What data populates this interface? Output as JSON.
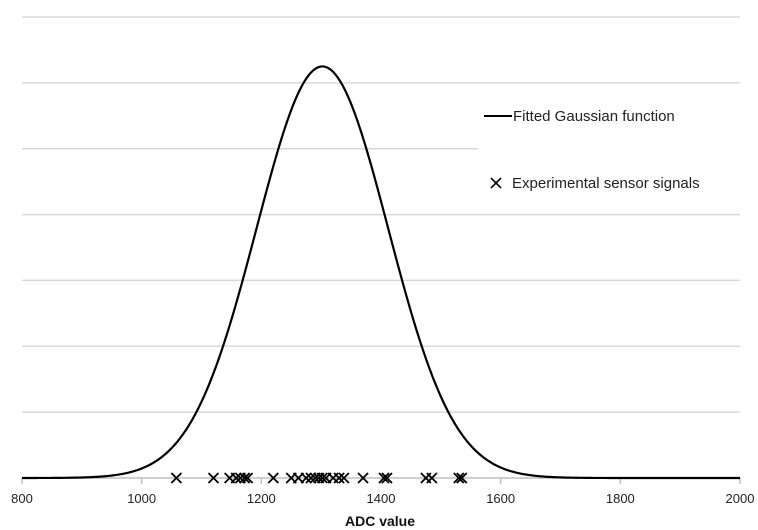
{
  "chart_data": {
    "type": "line",
    "xlabel": "ADC value",
    "ylabel": "",
    "xlim": [
      800,
      2000
    ],
    "ylim": [
      0,
      7
    ],
    "x_ticks": [
      800,
      1000,
      1200,
      1400,
      1600,
      1800,
      2000
    ],
    "x_tick_labels": [
      "800",
      "1000",
      "1200",
      "1400",
      "1600",
      "1800",
      "2000"
    ],
    "y_gridlines": [
      1,
      2,
      3,
      4,
      5,
      6,
      7
    ],
    "y_tick_labels_shown": false,
    "grid": "horizontal",
    "legend_placement": "right",
    "series": [
      {
        "name": "Fitted Gaussian function",
        "kind": "line",
        "color": "#000000",
        "gaussian": {
          "mean": 1302,
          "sigma": 110,
          "peak": 6.25
        }
      },
      {
        "name": "Experimental sensor signals",
        "kind": "scatter",
        "marker": "x",
        "color": "#000000",
        "y": 0,
        "x": [
          1058,
          1120,
          1147,
          1158,
          1165,
          1172,
          1177,
          1220,
          1250,
          1262,
          1275,
          1283,
          1290,
          1296,
          1302,
          1308,
          1320,
          1330,
          1338,
          1370,
          1405,
          1410,
          1475,
          1485,
          1530,
          1535
        ]
      }
    ]
  },
  "colors": {
    "grid": "#d9d9d9",
    "axis": "#bfbfbf",
    "ink": "#000000"
  }
}
